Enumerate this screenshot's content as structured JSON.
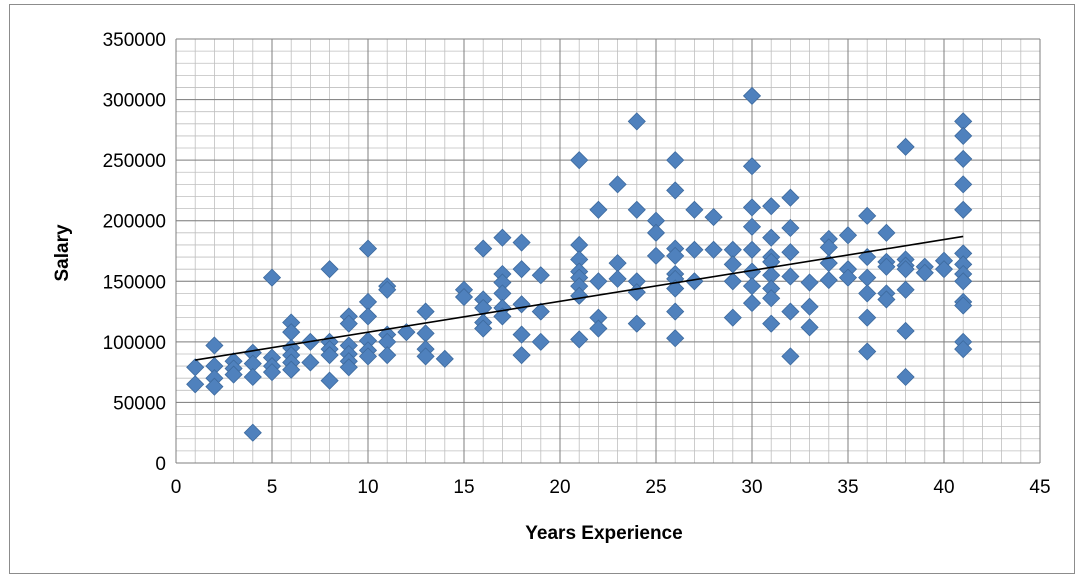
{
  "chart_data": {
    "type": "scatter",
    "title": "",
    "xlabel": "Years Experience",
    "ylabel": "Salary",
    "xlim": [
      0,
      45
    ],
    "ylim": [
      0,
      350000
    ],
    "x_ticks": [
      0,
      5,
      10,
      15,
      20,
      25,
      30,
      35,
      40,
      45
    ],
    "y_ticks": [
      0,
      50000,
      100000,
      150000,
      200000,
      250000,
      300000,
      350000
    ],
    "x_tick_labels": [
      "0",
      "5",
      "10",
      "15",
      "20",
      "25",
      "30",
      "35",
      "40",
      "45"
    ],
    "y_tick_labels": [
      "0",
      "50000",
      "100000",
      "150000",
      "200000",
      "250000",
      "300000",
      "350000"
    ],
    "grid": true,
    "legend": "none",
    "marker": "diamond",
    "marker_color": "#4F81BD",
    "trendline": {
      "type": "linear",
      "color": "#000000",
      "x": [
        1,
        41
      ],
      "y": [
        85000,
        187000
      ]
    },
    "series": [
      {
        "points": [
          [
            1,
            65000
          ],
          [
            1,
            79000
          ],
          [
            2,
            97000
          ],
          [
            2,
            80000
          ],
          [
            2,
            70000
          ],
          [
            2,
            63000
          ],
          [
            3,
            84000
          ],
          [
            3,
            78000
          ],
          [
            3,
            73000
          ],
          [
            4,
            91000
          ],
          [
            4,
            82000
          ],
          [
            4,
            71000
          ],
          [
            4,
            25000
          ],
          [
            5,
            153000
          ],
          [
            5,
            87000
          ],
          [
            5,
            80000
          ],
          [
            5,
            75000
          ],
          [
            6,
            116000
          ],
          [
            6,
            108000
          ],
          [
            6,
            95000
          ],
          [
            6,
            89000
          ],
          [
            6,
            83000
          ],
          [
            6,
            77000
          ],
          [
            7,
            100000
          ],
          [
            7,
            83000
          ],
          [
            8,
            160000
          ],
          [
            8,
            100000
          ],
          [
            8,
            94000
          ],
          [
            8,
            89000
          ],
          [
            8,
            68000
          ],
          [
            9,
            121000
          ],
          [
            9,
            115000
          ],
          [
            9,
            97000
          ],
          [
            9,
            90000
          ],
          [
            9,
            84000
          ],
          [
            9,
            79000
          ],
          [
            10,
            177000
          ],
          [
            10,
            133000
          ],
          [
            10,
            121000
          ],
          [
            10,
            101000
          ],
          [
            10,
            93000
          ],
          [
            10,
            88000
          ],
          [
            11,
            146000
          ],
          [
            11,
            143000
          ],
          [
            11,
            106000
          ],
          [
            11,
            100000
          ],
          [
            11,
            89000
          ],
          [
            12,
            108000
          ],
          [
            13,
            125000
          ],
          [
            13,
            107000
          ],
          [
            13,
            94000
          ],
          [
            13,
            88000
          ],
          [
            14,
            86000
          ],
          [
            15,
            143000
          ],
          [
            15,
            137000
          ],
          [
            16,
            177000
          ],
          [
            16,
            135000
          ],
          [
            16,
            128000
          ],
          [
            16,
            116000
          ],
          [
            16,
            111000
          ],
          [
            17,
            186000
          ],
          [
            17,
            156000
          ],
          [
            17,
            149000
          ],
          [
            17,
            140000
          ],
          [
            17,
            128000
          ],
          [
            17,
            121000
          ],
          [
            18,
            182000
          ],
          [
            18,
            160000
          ],
          [
            18,
            131000
          ],
          [
            18,
            106000
          ],
          [
            18,
            89000
          ],
          [
            19,
            155000
          ],
          [
            19,
            125000
          ],
          [
            19,
            100000
          ],
          [
            21,
            250000
          ],
          [
            21,
            180000
          ],
          [
            21,
            168000
          ],
          [
            21,
            158000
          ],
          [
            21,
            153000
          ],
          [
            21,
            146000
          ],
          [
            21,
            138000
          ],
          [
            21,
            102000
          ],
          [
            22,
            209000
          ],
          [
            22,
            150000
          ],
          [
            22,
            120000
          ],
          [
            22,
            111000
          ],
          [
            23,
            230000
          ],
          [
            23,
            165000
          ],
          [
            23,
            152000
          ],
          [
            24,
            282000
          ],
          [
            24,
            209000
          ],
          [
            24,
            150000
          ],
          [
            24,
            141000
          ],
          [
            24,
            115000
          ],
          [
            25,
            200000
          ],
          [
            25,
            190000
          ],
          [
            25,
            171000
          ],
          [
            26,
            250000
          ],
          [
            26,
            225000
          ],
          [
            26,
            177000
          ],
          [
            26,
            171000
          ],
          [
            26,
            156000
          ],
          [
            26,
            152000
          ],
          [
            26,
            144000
          ],
          [
            26,
            125000
          ],
          [
            26,
            103000
          ],
          [
            27,
            209000
          ],
          [
            27,
            176000
          ],
          [
            27,
            150000
          ],
          [
            28,
            203000
          ],
          [
            28,
            176000
          ],
          [
            29,
            176000
          ],
          [
            29,
            164000
          ],
          [
            29,
            150000
          ],
          [
            29,
            120000
          ],
          [
            30,
            303000
          ],
          [
            30,
            245000
          ],
          [
            30,
            211000
          ],
          [
            30,
            195000
          ],
          [
            30,
            176000
          ],
          [
            30,
            158000
          ],
          [
            30,
            146000
          ],
          [
            30,
            132000
          ],
          [
            31,
            212000
          ],
          [
            31,
            186000
          ],
          [
            31,
            170000
          ],
          [
            31,
            166000
          ],
          [
            31,
            155000
          ],
          [
            31,
            144000
          ],
          [
            31,
            136000
          ],
          [
            31,
            115000
          ],
          [
            32,
            219000
          ],
          [
            32,
            194000
          ],
          [
            32,
            174000
          ],
          [
            32,
            154000
          ],
          [
            32,
            125000
          ],
          [
            32,
            88000
          ],
          [
            33,
            149000
          ],
          [
            33,
            129000
          ],
          [
            33,
            112000
          ],
          [
            34,
            185000
          ],
          [
            34,
            178000
          ],
          [
            34,
            165000
          ],
          [
            34,
            151000
          ],
          [
            35,
            188000
          ],
          [
            35,
            160000
          ],
          [
            35,
            153000
          ],
          [
            36,
            204000
          ],
          [
            36,
            170000
          ],
          [
            36,
            153000
          ],
          [
            36,
            140000
          ],
          [
            36,
            120000
          ],
          [
            36,
            92000
          ],
          [
            37,
            190000
          ],
          [
            37,
            166000
          ],
          [
            37,
            162000
          ],
          [
            37,
            140000
          ],
          [
            37,
            135000
          ],
          [
            38,
            261000
          ],
          [
            38,
            168000
          ],
          [
            38,
            163000
          ],
          [
            38,
            160000
          ],
          [
            38,
            143000
          ],
          [
            38,
            109000
          ],
          [
            38,
            71000
          ],
          [
            39,
            162000
          ],
          [
            39,
            157000
          ],
          [
            40,
            167000
          ],
          [
            40,
            160000
          ],
          [
            41,
            282000
          ],
          [
            41,
            270000
          ],
          [
            41,
            251000
          ],
          [
            41,
            230000
          ],
          [
            41,
            209000
          ],
          [
            41,
            173000
          ],
          [
            41,
            164000
          ],
          [
            41,
            156000
          ],
          [
            41,
            150000
          ],
          [
            41,
            133000
          ],
          [
            41,
            130000
          ],
          [
            41,
            100000
          ],
          [
            41,
            94000
          ]
        ]
      }
    ]
  }
}
